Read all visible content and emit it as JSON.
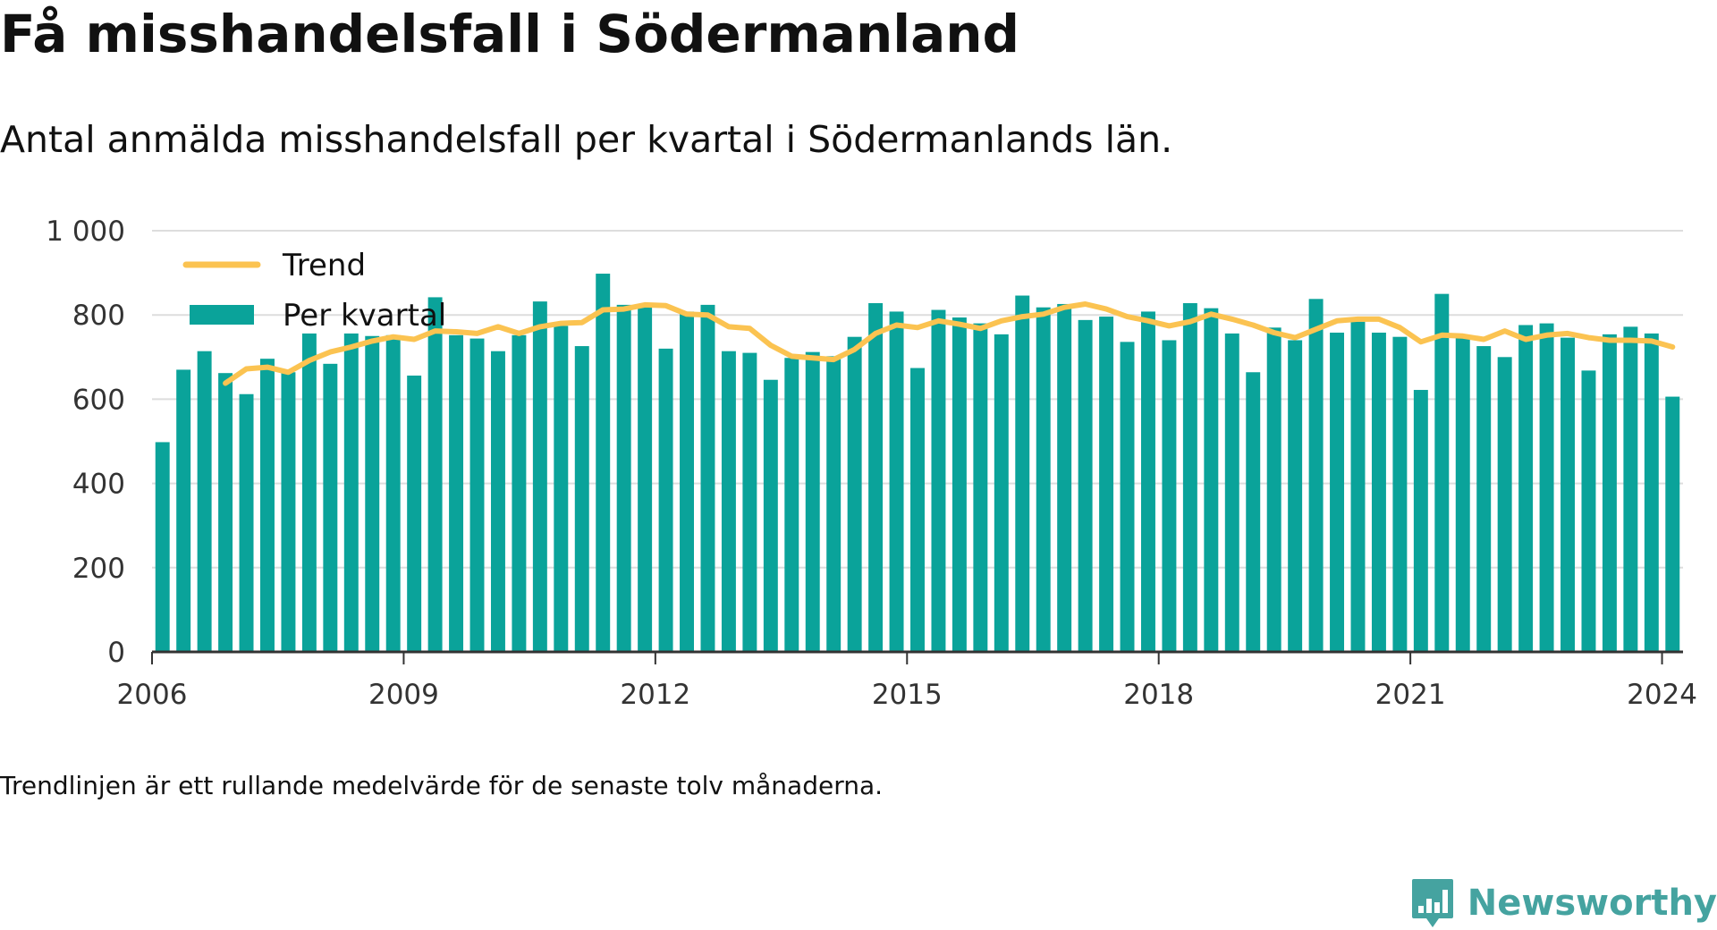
{
  "title": "Få misshandelsfall i Södermanland",
  "subtitle": "Antal anmälda misshandelsfall per kvartal i Södermanlands län.",
  "footnote": "Trendlinjen är ett rullande medelvärde för de senaste tolv månaderna.",
  "brand": {
    "name": "Newsworthy",
    "logo_icon": "bar-chart-speech-bubble-icon",
    "color": "#45a3a0"
  },
  "colors": {
    "bar": "#0aa39a",
    "trend": "#fbc351",
    "grid": "#dddddd",
    "axis": "#333333",
    "text": "#333333"
  },
  "chart_data": {
    "type": "bar",
    "x_type": "year-quarter",
    "xlim": [
      2006.0,
      2024.25
    ],
    "ylim": [
      0,
      1000
    ],
    "yticks": [
      0,
      200,
      400,
      600,
      800,
      1000
    ],
    "ytick_labels": [
      "0",
      "200",
      "400",
      "600",
      "800",
      "1 000"
    ],
    "xticks": [
      2006,
      2009,
      2012,
      2015,
      2018,
      2021,
      2024
    ],
    "xtick_labels": [
      "2006",
      "2009",
      "2012",
      "2015",
      "2018",
      "2021",
      "2024"
    ],
    "grid": true,
    "legend_position": "top-left",
    "legend": [
      {
        "label": "Trend",
        "kind": "line"
      },
      {
        "label": "Per kvartal",
        "kind": "bar"
      }
    ],
    "quarters": [
      "2006-Q1",
      "2006-Q2",
      "2006-Q3",
      "2006-Q4",
      "2007-Q1",
      "2007-Q2",
      "2007-Q3",
      "2007-Q4",
      "2008-Q1",
      "2008-Q2",
      "2008-Q3",
      "2008-Q4",
      "2009-Q1",
      "2009-Q2",
      "2009-Q3",
      "2009-Q4",
      "2010-Q1",
      "2010-Q2",
      "2010-Q3",
      "2010-Q4",
      "2011-Q1",
      "2011-Q2",
      "2011-Q3",
      "2011-Q4",
      "2012-Q1",
      "2012-Q2",
      "2012-Q3",
      "2012-Q4",
      "2013-Q1",
      "2013-Q2",
      "2013-Q3",
      "2013-Q4",
      "2014-Q1",
      "2014-Q2",
      "2014-Q3",
      "2014-Q4",
      "2015-Q1",
      "2015-Q2",
      "2015-Q3",
      "2015-Q4",
      "2016-Q1",
      "2016-Q2",
      "2016-Q3",
      "2016-Q4",
      "2017-Q1",
      "2017-Q2",
      "2017-Q3",
      "2017-Q4",
      "2018-Q1",
      "2018-Q2",
      "2018-Q3",
      "2018-Q4",
      "2019-Q1",
      "2019-Q2",
      "2019-Q3",
      "2019-Q4",
      "2020-Q1",
      "2020-Q2",
      "2020-Q3",
      "2020-Q4",
      "2021-Q1",
      "2021-Q2",
      "2021-Q3",
      "2021-Q4",
      "2022-Q1",
      "2022-Q2",
      "2022-Q3",
      "2022-Q4",
      "2023-Q1",
      "2023-Q2",
      "2023-Q3",
      "2023-Q4",
      "2024-Q1"
    ],
    "series": [
      {
        "name": "Per kvartal",
        "values": [
          498,
          670,
          714,
          662,
          612,
          696,
          664,
          756,
          684,
          756,
          750,
          752,
          656,
          842,
          752,
          744,
          714,
          752,
          832,
          774,
          726,
          898,
          824,
          826,
          720,
          808,
          824,
          714,
          710,
          646,
          698,
          712,
          702,
          748,
          828,
          808,
          674,
          812,
          794,
          780,
          754,
          846,
          818,
          826,
          788,
          796,
          736,
          808,
          740,
          828,
          816,
          756,
          664,
          770,
          740,
          838,
          758,
          784,
          758,
          748,
          622,
          850,
          752,
          726,
          700,
          776,
          780,
          746,
          668,
          754,
          772,
          756,
          606
        ]
      },
      {
        "name": "Trend",
        "values": [
          null,
          null,
          null,
          638,
          672,
          676,
          664,
          692,
          712,
          724,
          738,
          748,
          742,
          762,
          760,
          756,
          772,
          756,
          772,
          780,
          782,
          812,
          814,
          824,
          822,
          802,
          800,
          772,
          768,
          728,
          702,
          698,
          694,
          718,
          756,
          776,
          770,
          786,
          778,
          768,
          786,
          796,
          802,
          818,
          826,
          814,
          796,
          786,
          774,
          784,
          802,
          790,
          776,
          758,
          746,
          766,
          786,
          790,
          790,
          770,
          736,
          752,
          750,
          742,
          762,
          742,
          752,
          756,
          746,
          740,
          740,
          738,
          724
        ]
      }
    ]
  }
}
